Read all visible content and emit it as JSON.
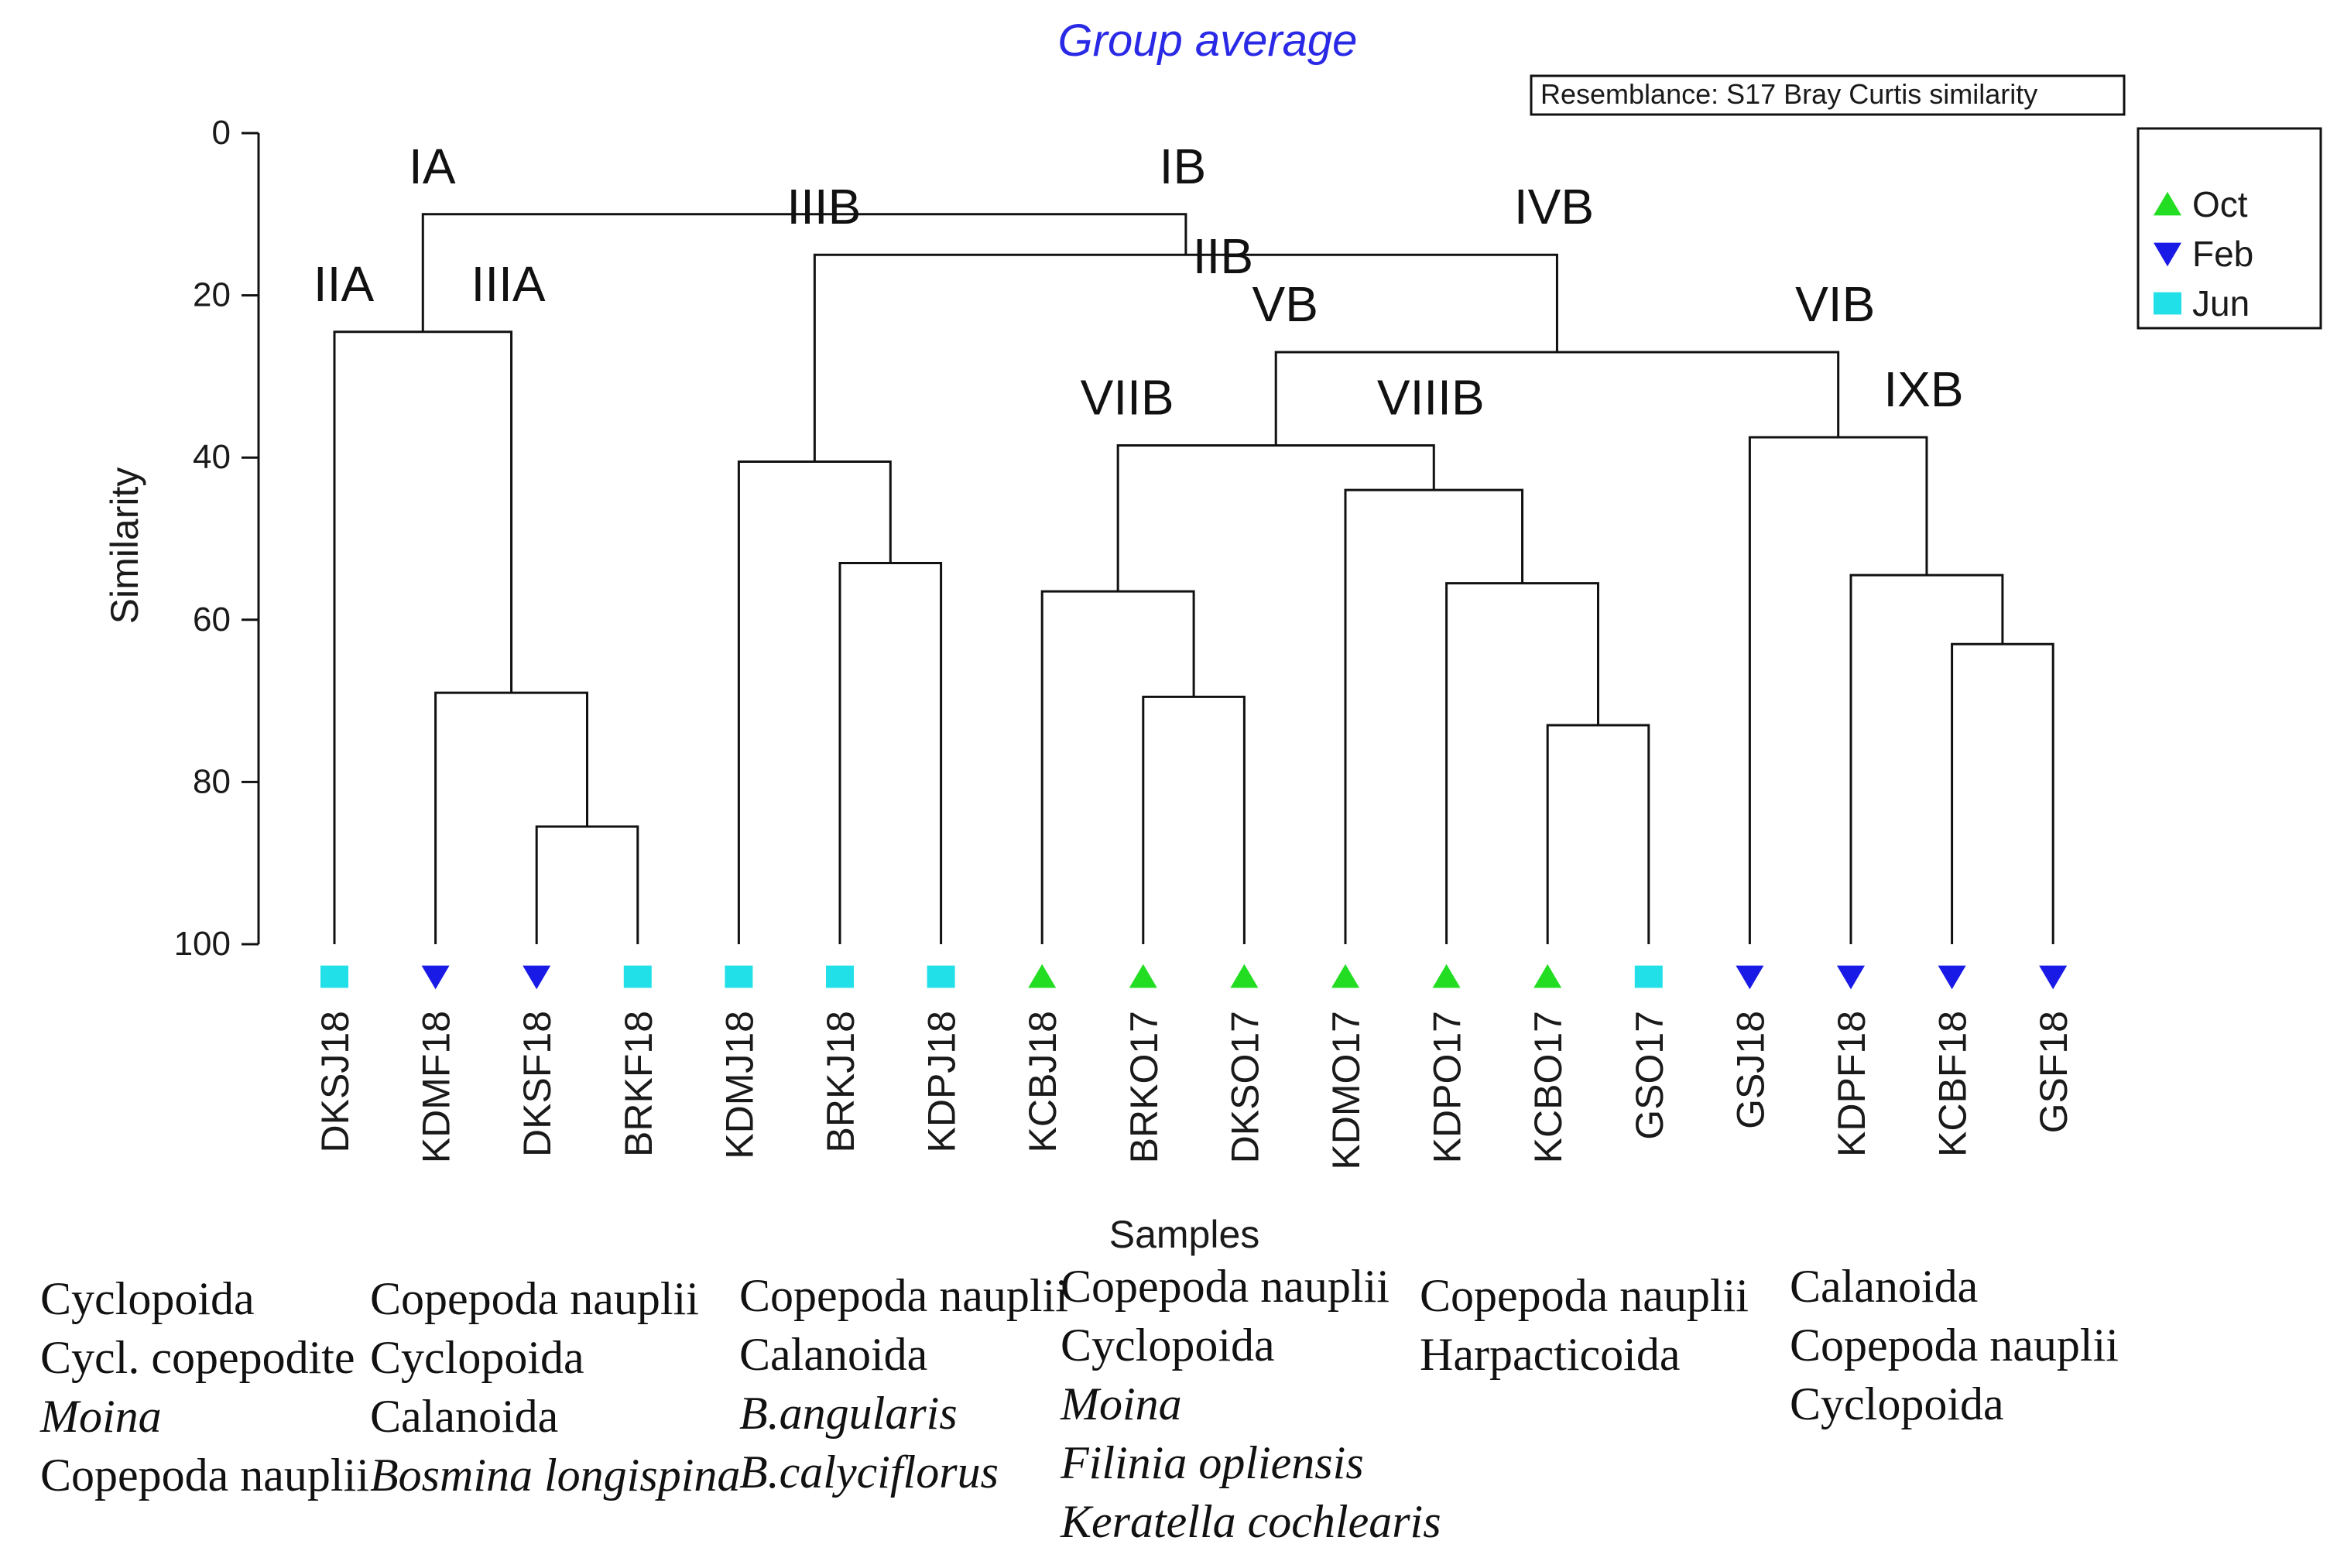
{
  "chart_data": {
    "type": "dendrogram",
    "title": "Group average",
    "resemblance": "Resemblance: S17 Bray Curtis similarity",
    "xlabel": "Samples",
    "ylabel": "Similarity",
    "ylim": [
      0,
      100
    ],
    "yticks": [
      "0",
      "20",
      "40",
      "60",
      "80",
      "100"
    ],
    "legend": [
      {
        "label": "Oct",
        "shape": "triangle-up",
        "color": "#22dd22"
      },
      {
        "label": "Feb",
        "shape": "triangle-down",
        "color": "#1a1ae6"
      },
      {
        "label": "Jun",
        "shape": "square",
        "color": "#22e0e8"
      }
    ],
    "samples": [
      {
        "name": "DKSJ18",
        "month": "Jun"
      },
      {
        "name": "KDMF18",
        "month": "Feb"
      },
      {
        "name": "DKSF18",
        "month": "Feb"
      },
      {
        "name": "BRKF18",
        "month": "Jun"
      },
      {
        "name": "KDMJ18",
        "month": "Jun"
      },
      {
        "name": "BRKJ18",
        "month": "Jun"
      },
      {
        "name": "KDPJ18",
        "month": "Jun"
      },
      {
        "name": "KCBJ18",
        "month": "Oct"
      },
      {
        "name": "BRKO17",
        "month": "Oct"
      },
      {
        "name": "DKSO17",
        "month": "Oct"
      },
      {
        "name": "KDMO17",
        "month": "Oct"
      },
      {
        "name": "KDPO17",
        "month": "Oct"
      },
      {
        "name": "KCBO17",
        "month": "Oct"
      },
      {
        "name": "GSO17",
        "month": "Jun"
      },
      {
        "name": "GSJ18",
        "month": "Feb"
      },
      {
        "name": "KDPF18",
        "month": "Feb"
      },
      {
        "name": "KCBF18",
        "month": "Feb"
      },
      {
        "name": "GSF18",
        "month": "Feb"
      }
    ],
    "merges": [
      {
        "a": "DKSF18",
        "b": "BRKF18",
        "sim": 85.5
      },
      {
        "a": "KDMF18",
        "b": "m0",
        "sim": 69
      },
      {
        "a": "DKSJ18",
        "b": "m1",
        "sim": 24.5
      },
      {
        "a": "BRKJ18",
        "b": "KDPJ18",
        "sim": 53
      },
      {
        "a": "KDMJ18",
        "b": "m3",
        "sim": 40.5
      },
      {
        "a": "BRKO17",
        "b": "DKSO17",
        "sim": 69.5
      },
      {
        "a": "KCBJ18",
        "b": "m5",
        "sim": 56.5
      },
      {
        "a": "KCBO17",
        "b": "GSO17",
        "sim": 73
      },
      {
        "a": "KDPO17",
        "b": "m7",
        "sim": 55.5
      },
      {
        "a": "KDMO17",
        "b": "m8",
        "sim": 44
      },
      {
        "a": "m6",
        "b": "m9",
        "sim": 38.5
      },
      {
        "a": "KCBF18",
        "b": "GSF18",
        "sim": 63
      },
      {
        "a": "KDPF18",
        "b": "m11",
        "sim": 54.5
      },
      {
        "a": "GSJ18",
        "b": "m12",
        "sim": 37.5
      },
      {
        "a": "m10",
        "b": "m13",
        "sim": 27
      },
      {
        "a": "m4",
        "b": "m14",
        "sim": 15
      },
      {
        "a": "m2",
        "b": "m15",
        "sim": 10
      }
    ],
    "group_labels": [
      {
        "text": "IA",
        "node": "m16",
        "side": "left"
      },
      {
        "text": "IB",
        "node": "m16",
        "side": "right"
      },
      {
        "text": "IIA",
        "node": "m2",
        "side": "left"
      },
      {
        "text": "IIIA",
        "node": "m2",
        "side": "right"
      },
      {
        "text": "IIB",
        "node": "m15",
        "side": "top"
      },
      {
        "text": "IIIB",
        "node": "m15",
        "side": "left"
      },
      {
        "text": "IVB",
        "node": "m15",
        "side": "right"
      },
      {
        "text": "VB",
        "node": "m14",
        "side": "left"
      },
      {
        "text": "VIB",
        "node": "m14",
        "side": "right"
      },
      {
        "text": "VIIB",
        "node": "m10",
        "side": "left"
      },
      {
        "text": "VIIIB",
        "node": "m10",
        "side": "right"
      },
      {
        "text": "IXB",
        "node": "m13",
        "side": "right"
      }
    ]
  },
  "taxa_groups": [
    {
      "items": [
        {
          "text": "Cyclopoida",
          "italic": false
        },
        {
          "text": "Cycl. copepodite",
          "italic": false
        },
        {
          "text": "Moina",
          "italic": true
        },
        {
          "text": "Copepoda nauplii",
          "italic": false
        }
      ]
    },
    {
      "items": [
        {
          "text": "Copepoda nauplii",
          "italic": false
        },
        {
          "text": "Cyclopoida",
          "italic": false
        },
        {
          "text": "Calanoida",
          "italic": false
        },
        {
          "text": "Bosmina longispina",
          "italic": true
        }
      ]
    },
    {
      "items": [
        {
          "text": "Copepoda nauplii",
          "italic": false
        },
        {
          "text": "Calanoida",
          "italic": false
        },
        {
          "text": "B.angularis",
          "italic": true
        },
        {
          "text": "B.calyciflorus",
          "italic": true
        }
      ]
    },
    {
      "items": [
        {
          "text": "Copepoda nauplii",
          "italic": false
        },
        {
          "text": "Cyclopoida",
          "italic": false
        },
        {
          "text": "Moina",
          "italic": true
        },
        {
          "text": "Filinia opliensis",
          "italic": true
        },
        {
          "text": "Keratella cochlearis",
          "italic": true
        }
      ]
    },
    {
      "items": [
        {
          "text": "Copepoda nauplii",
          "italic": false
        },
        {
          "text": "Harpacticoida",
          "italic": false
        }
      ]
    },
    {
      "items": [
        {
          "text": "Calanoida",
          "italic": false
        },
        {
          "text": "Copepoda nauplii",
          "italic": false
        },
        {
          "text": "Cyclopoida",
          "italic": false
        }
      ]
    }
  ]
}
